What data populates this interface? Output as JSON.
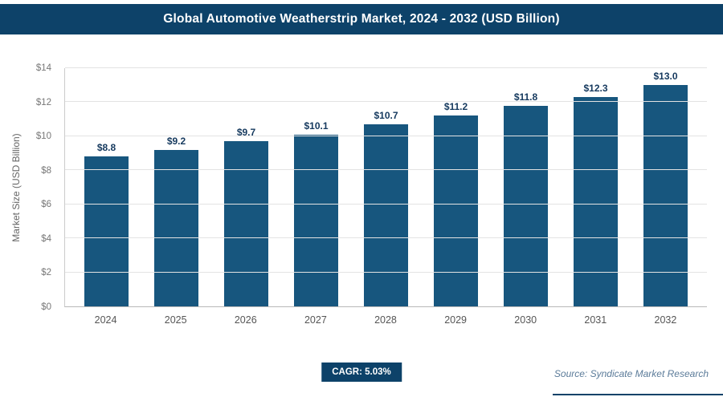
{
  "chart_data": {
    "type": "bar",
    "title": "Global Automotive Weatherstrip Market, 2024 - 2032 (USD Billion)",
    "categories": [
      "2024",
      "2025",
      "2026",
      "2027",
      "2028",
      "2029",
      "2030",
      "2031",
      "2032"
    ],
    "values": [
      8.8,
      9.2,
      9.7,
      10.1,
      10.7,
      11.2,
      11.8,
      12.3,
      13.0
    ],
    "value_labels": [
      "$8.8",
      "$9.2",
      "$9.7",
      "$10.1",
      "$10.7",
      "$11.2",
      "$11.8",
      "$12.3",
      "$13.0"
    ],
    "xlabel": "",
    "ylabel": "Market Size (USD Billion)",
    "ylim": [
      0,
      14
    ],
    "yticks": [
      0,
      2,
      4,
      6,
      8,
      10,
      12,
      14
    ],
    "ytick_labels": [
      "$0",
      "$2",
      "$4",
      "$6",
      "$8",
      "$10",
      "$12",
      "$14"
    ],
    "grid": true,
    "legend": false
  },
  "footer": {
    "cagr_label": "CAGR: 5.03%",
    "source": "Source: Syndicate Market Research"
  },
  "colors": {
    "header_bg": "#0d4269",
    "bar": "#17567e",
    "badge_bg": "#0d4269",
    "value_label_text": "#15395e",
    "source_text": "#5b7b99"
  }
}
